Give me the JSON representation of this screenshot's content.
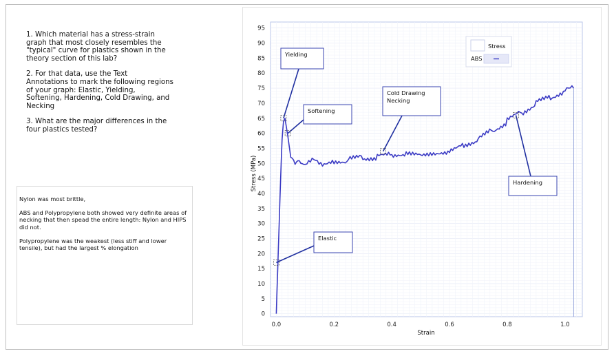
{
  "questions": [
    "1.  Which material has a stress-strain\ngraph that most closely resembles the\n\"typical\" curve for plastics shown in the\ntheory section of this lab?",
    "2.  For that data, use the Text\nAnnotations to mark the following regions\nof your graph:  Elastic, Yielding,\nSoftening, Hardening, Cold Drawing, and\nNecking",
    "3.  What are the major differences in the\nfour plastics tested?"
  ],
  "answers": [
    "Nylon was most brittle,",
    "ABS and Polypropylene both showed very definite areas of necking that then spead the entire length: Nylon and HIPS did not.",
    "Polypropylene was the weakest (less stiff and lower tensile), but had the largest % elongation"
  ],
  "chart_data": {
    "type": "line",
    "title": "",
    "xlabel": "Strain",
    "ylabel": "Stress (MPa)",
    "xlim": [
      -0.02,
      1.06
    ],
    "ylim": [
      -1,
      97
    ],
    "x_ticks": [
      "0.0",
      "0.2",
      "0.4",
      "0.6",
      "0.8",
      "1.0"
    ],
    "y_ticks": [
      "0",
      "5",
      "10",
      "15",
      "20",
      "25",
      "30",
      "35",
      "40",
      "45",
      "50",
      "55",
      "60",
      "65",
      "70",
      "75",
      "80",
      "85",
      "90",
      "95"
    ],
    "grid": true,
    "legend": {
      "placement": "top-right",
      "header": "Stress",
      "entries": [
        "ABS"
      ]
    },
    "series": [
      {
        "name": "ABS",
        "color": "#3b3bc4",
        "x": [
          0.0,
          0.005,
          0.01,
          0.015,
          0.02,
          0.025,
          0.03,
          0.035,
          0.04,
          0.05,
          0.06,
          0.07,
          0.08,
          0.1,
          0.13,
          0.16,
          0.2,
          0.25,
          0.3,
          0.35,
          0.4,
          0.45,
          0.5,
          0.55,
          0.6,
          0.65,
          0.7,
          0.75,
          0.8,
          0.85,
          0.9,
          0.95,
          1.0,
          1.03
        ],
        "y": [
          0,
          15,
          30,
          45,
          58,
          64,
          65,
          62,
          59,
          52,
          51,
          50,
          51,
          50,
          51,
          50,
          51,
          51,
          52,
          52,
          53,
          53,
          53,
          53,
          54,
          56,
          58,
          61,
          64,
          67,
          70,
          72,
          74,
          75
        ]
      }
    ],
    "annotations": [
      {
        "text": "Yielding",
        "x": 0.025,
        "y": 65
      },
      {
        "text": "Softening",
        "x": 0.04,
        "y": 60
      },
      {
        "text": "Cold Drawing\nNecking",
        "x": 0.37,
        "y": 54
      },
      {
        "text": "Hardening",
        "x": 0.83,
        "y": 66
      },
      {
        "text": "Elastic",
        "x": 0.0,
        "y": 17
      }
    ]
  }
}
